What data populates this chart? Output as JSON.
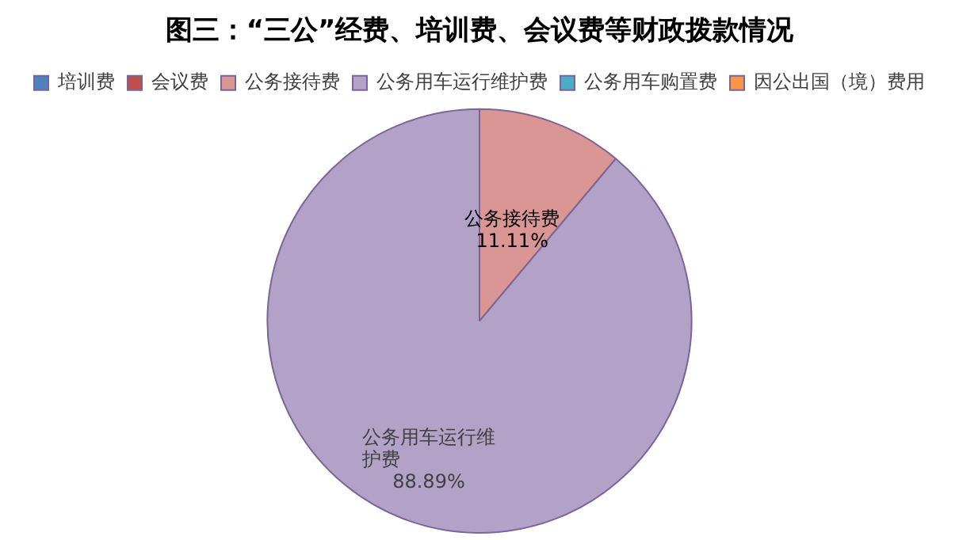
{
  "chart_data": {
    "type": "pie",
    "title": "图三：“三公”经费、培训费、会议费等财政拨款情况",
    "categories": [
      "培训费",
      "会议费",
      "公务接待费",
      "公务用车运行维护费",
      "公务用车购置费",
      "因公出国（境）费用"
    ],
    "values": [
      0,
      0,
      11.11,
      88.89,
      0,
      0
    ],
    "colors": [
      "#4f81bd",
      "#c0504d",
      "#d99694",
      "#b3a2c7",
      "#4bacc6",
      "#f79646"
    ],
    "value_labels": [
      null,
      null,
      "11.11%",
      "88.89%",
      null,
      null
    ],
    "legend": "top"
  }
}
